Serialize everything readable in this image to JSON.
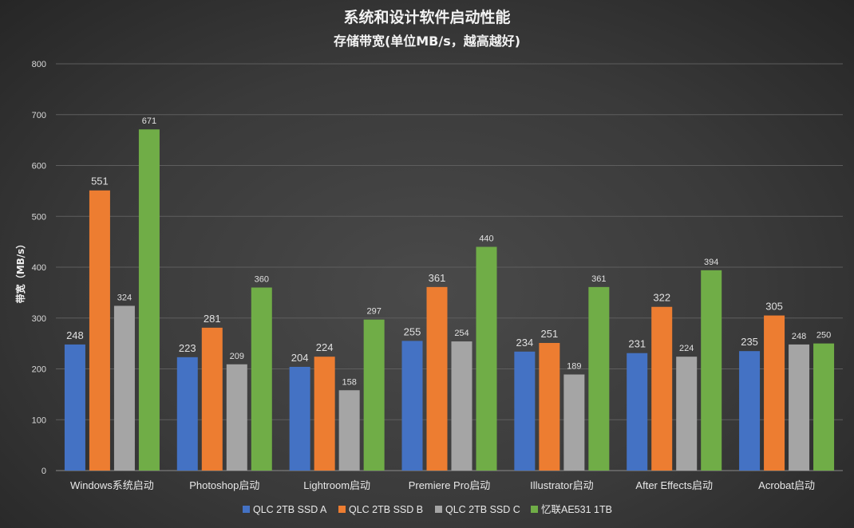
{
  "chart_data": {
    "type": "bar",
    "title": "系统和设计软件启动性能",
    "subtitle": "存储带宽(单位MB/s，越高越好)",
    "ylabel": "带宽（MB/s）",
    "xlabel": "",
    "ylim": [
      0,
      800
    ],
    "yticks": [
      0,
      100,
      200,
      300,
      400,
      500,
      600,
      700,
      800
    ],
    "grid": true,
    "legend_position": "bottom",
    "categories": [
      "Windows系统启动",
      "Photoshop启动",
      "Lightroom启动",
      "Premiere Pro启动",
      "Illustrator启动",
      "After Effects启动",
      "Acrobat启动"
    ],
    "series": [
      {
        "name": "QLC 2TB SSD A",
        "color": "#4472c4",
        "values": [
          248,
          223,
          204,
          255,
          234,
          231,
          235
        ]
      },
      {
        "name": "QLC 2TB SSD B",
        "color": "#ed7d31",
        "values": [
          551,
          281,
          224,
          361,
          251,
          322,
          305
        ]
      },
      {
        "name": "QLC 2TB SSD C",
        "color": "#a5a5a5",
        "values": [
          324,
          209,
          158,
          254,
          189,
          224,
          248
        ]
      },
      {
        "name": "忆联AE531 1TB",
        "color": "#70ad47",
        "values": [
          671,
          360,
          297,
          440,
          361,
          394,
          250
        ]
      }
    ]
  }
}
